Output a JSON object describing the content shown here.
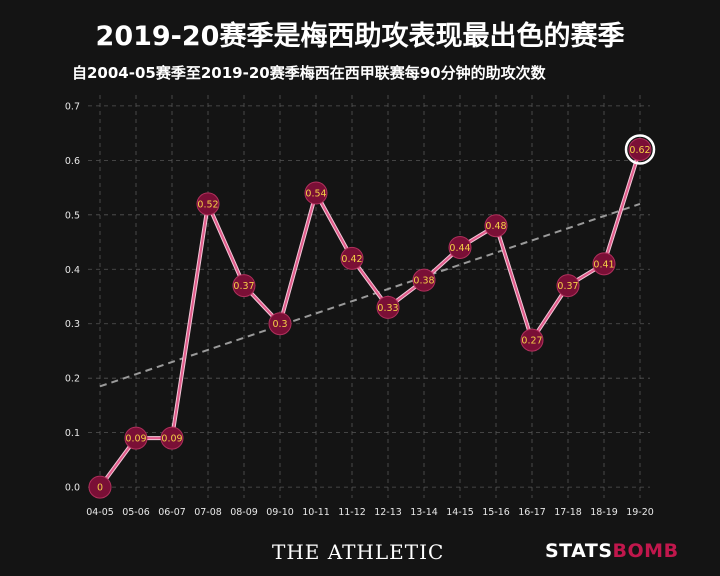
{
  "header": {
    "title": "2019-20赛季是梅西助攻表现最出色的赛季",
    "subtitle": "自2004-05赛季至2019-20赛季梅西在西甲联赛每90分钟的助攻次数"
  },
  "branding": {
    "left": "THE ATHLETIC",
    "right_main": "STATS",
    "right_accent": "BOMB"
  },
  "colors": {
    "background": "#141414",
    "grid": "#555555",
    "line": "#e05a8a",
    "dot_fill": "#7a0f36",
    "dot_label": "#f5d046",
    "trend": "#9a9a9a",
    "highlight_ring": "#ffffff"
  },
  "chart_data": {
    "type": "line",
    "title": "2019-20赛季是梅西助攻表现最出色的赛季",
    "subtitle": "自2004-05赛季至2019-20赛季梅西在西甲联赛每90分钟的助攻次数",
    "categories": [
      "04-05",
      "05-06",
      "06-07",
      "07-08",
      "08-09",
      "09-10",
      "10-11",
      "11-12",
      "12-13",
      "13-14",
      "14-15",
      "15-16",
      "16-17",
      "17-18",
      "18-19",
      "19-20"
    ],
    "values": [
      0,
      0.09,
      0.09,
      0.52,
      0.37,
      0.3,
      0.54,
      0.42,
      0.33,
      0.38,
      0.44,
      0.48,
      0.27,
      0.37,
      0.41,
      0.62
    ],
    "value_labels": [
      "0",
      "0.09",
      "0.09",
      "0.52",
      "0.37",
      "0.3",
      "0.54",
      "0.42",
      "0.33",
      "0.38",
      "0.44",
      "0.48",
      "0.27",
      "0.37",
      "0.41",
      "0.62"
    ],
    "ylim": [
      -0.02,
      0.72
    ],
    "yticks": [
      0.0,
      0.1,
      0.2,
      0.3,
      0.4,
      0.5,
      0.6,
      0.7
    ],
    "ytick_labels": [
      "0.0",
      "0.1",
      "0.2",
      "0.3",
      "0.4",
      "0.5",
      "0.6",
      "0.7"
    ],
    "trendline": {
      "start": 0.185,
      "end": 0.52
    },
    "highlight_index": 15,
    "grid": true,
    "xlabel": "",
    "ylabel": ""
  }
}
